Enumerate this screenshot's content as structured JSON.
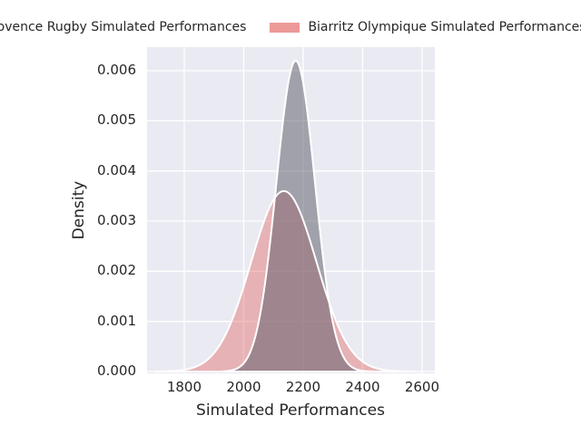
{
  "figure": {
    "background": "#ffffff",
    "panel_background": "#eaeaf2",
    "grid_color": "#ffffff",
    "text_color": "#262626"
  },
  "legend": {
    "position": "top, horizontal, clipped at both screen edges",
    "entries": [
      {
        "label": "Provence Rugby Simulated Performances",
        "swatch_color": "#a8a8b0"
      },
      {
        "label": "Biarritz Olympique Simulated Performances",
        "swatch_color": "#ec9a98"
      }
    ]
  },
  "chart_data": {
    "type": "area",
    "subtype": "kde-density",
    "title": "",
    "xlabel": "Simulated Performances",
    "ylabel": "Density",
    "xlim": [
      1675,
      2643
    ],
    "ylim": [
      0,
      0.0065
    ],
    "xticks": [
      "1800",
      "2000",
      "2200",
      "2400",
      "2600"
    ],
    "xtick_values": [
      1800,
      2000,
      2200,
      2400,
      2600
    ],
    "yticks": [
      "0.000",
      "0.001",
      "0.002",
      "0.003",
      "0.004",
      "0.005",
      "0.006"
    ],
    "ytick_values": [
      0,
      0.001,
      0.002,
      0.003,
      0.004,
      0.005,
      0.006
    ],
    "grid": true,
    "legend_position": "top",
    "series": [
      {
        "name": "Provence Rugby Simulated Performances",
        "shape": "gaussian-kde",
        "mean": 2175,
        "std": 65,
        "peak_density": 0.0062,
        "span": [
          1930,
          2440
        ],
        "fill_color": "rgba(88,88,100,0.50)",
        "line_color": "#ffffff",
        "z": 2
      },
      {
        "name": "Biarritz Olympique Simulated Performances",
        "shape": "gaussian-kde",
        "mean": 2135,
        "std": 110,
        "peak_density": 0.0036,
        "span": [
          1700,
          2580
        ],
        "fill_color": "rgba(226,96,93,0.40)",
        "line_color": "#ffffff",
        "z": 1
      }
    ]
  }
}
